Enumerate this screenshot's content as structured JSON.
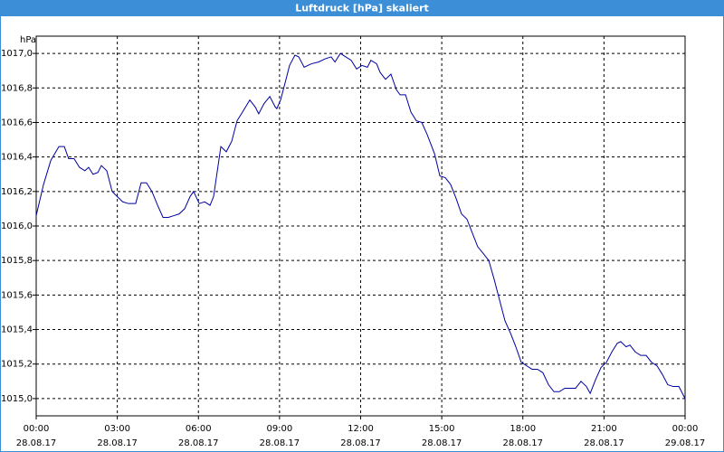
{
  "chart_data": {
    "type": "line",
    "title": "Luftdruck [hPa] skaliert",
    "y_label": "hPa",
    "xlim": [
      0,
      24
    ],
    "ylim": [
      1014.9,
      1017.1
    ],
    "grid": true,
    "xticks": [
      {
        "value": 0,
        "label": "00:00",
        "date": "28.08.17"
      },
      {
        "value": 3,
        "label": "03:00",
        "date": "28.08.17"
      },
      {
        "value": 6,
        "label": "06:00",
        "date": "28.08.17"
      },
      {
        "value": 9,
        "label": "09:00",
        "date": "28.08.17"
      },
      {
        "value": 12,
        "label": "12:00",
        "date": "28.08.17"
      },
      {
        "value": 15,
        "label": "15:00",
        "date": "28.08.17"
      },
      {
        "value": 18,
        "label": "18:00",
        "date": "28.08.17"
      },
      {
        "value": 21,
        "label": "21:00",
        "date": "28.08.17"
      },
      {
        "value": 24,
        "label": "00:00",
        "date": "29.08.17"
      }
    ],
    "yticks": [
      {
        "value": 1015.0,
        "label": "1015,0"
      },
      {
        "value": 1015.2,
        "label": "1015,2"
      },
      {
        "value": 1015.4,
        "label": "1015,4"
      },
      {
        "value": 1015.6,
        "label": "1015,6"
      },
      {
        "value": 1015.8,
        "label": "1015,8"
      },
      {
        "value": 1016.0,
        "label": "1016,0"
      },
      {
        "value": 1016.2,
        "label": "1016,2"
      },
      {
        "value": 1016.4,
        "label": "1016,4"
      },
      {
        "value": 1016.6,
        "label": "1016,6"
      },
      {
        "value": 1016.8,
        "label": "1016,8"
      },
      {
        "value": 1017.0,
        "label": "1017,0"
      }
    ],
    "series": [
      {
        "name": "Luftdruck",
        "color": "#0000a0",
        "x": [
          0,
          0.27,
          0.54,
          0.84,
          1.04,
          1.2,
          1.4,
          1.6,
          1.8,
          1.94,
          2.1,
          2.28,
          2.41,
          2.61,
          2.81,
          3.0,
          3.2,
          3.41,
          3.68,
          3.88,
          4.08,
          4.28,
          4.49,
          4.69,
          4.89,
          5.09,
          5.29,
          5.49,
          5.69,
          5.82,
          6.03,
          6.23,
          6.43,
          6.56,
          6.83,
          7.03,
          7.23,
          7.43,
          7.63,
          7.9,
          8.1,
          8.23,
          8.43,
          8.64,
          8.84,
          8.9,
          9.04,
          9.24,
          9.37,
          9.57,
          9.71,
          9.91,
          10.18,
          10.44,
          10.71,
          10.91,
          11.05,
          11.25,
          11.45,
          11.65,
          11.85,
          12.05,
          12.25,
          12.38,
          12.59,
          12.72,
          12.92,
          13.12,
          13.32,
          13.46,
          13.66,
          13.86,
          14.06,
          14.26,
          14.46,
          14.73,
          14.93,
          15.13,
          15.33,
          15.53,
          15.73,
          15.93,
          16.13,
          16.33,
          16.54,
          16.74,
          16.94,
          17.14,
          17.34,
          17.54,
          17.74,
          17.94,
          18.14,
          18.34,
          18.54,
          18.74,
          18.95,
          19.15,
          19.35,
          19.55,
          19.75,
          19.95,
          20.15,
          20.35,
          20.49,
          20.69,
          20.89,
          21.09,
          21.29,
          21.49,
          21.62,
          21.82,
          21.96,
          22.16,
          22.36,
          22.56,
          22.76,
          22.96,
          23.16,
          23.36,
          23.56,
          23.77,
          24.0
        ],
        "values": [
          1016.06,
          1016.24,
          1016.38,
          1016.46,
          1016.46,
          1016.39,
          1016.39,
          1016.34,
          1016.32,
          1016.34,
          1016.3,
          1016.31,
          1016.35,
          1016.32,
          1016.2,
          1016.17,
          1016.14,
          1016.13,
          1016.13,
          1016.25,
          1016.25,
          1016.2,
          1016.12,
          1016.05,
          1016.05,
          1016.06,
          1016.07,
          1016.1,
          1016.17,
          1016.2,
          1016.13,
          1016.14,
          1016.12,
          1016.17,
          1016.46,
          1016.43,
          1016.49,
          1016.61,
          1016.66,
          1016.73,
          1016.69,
          1016.65,
          1016.71,
          1016.75,
          1016.69,
          1016.68,
          1016.73,
          1016.85,
          1016.93,
          1016.99,
          1016.98,
          1016.92,
          1016.94,
          1016.95,
          1016.97,
          1016.98,
          1016.95,
          1017.0,
          1016.98,
          1016.96,
          1016.91,
          1016.93,
          1016.92,
          1016.96,
          1016.94,
          1016.89,
          1016.85,
          1016.88,
          1016.79,
          1016.76,
          1016.76,
          1016.66,
          1016.61,
          1016.6,
          1016.53,
          1016.42,
          1016.29,
          1016.28,
          1016.24,
          1016.16,
          1016.07,
          1016.04,
          1015.96,
          1015.88,
          1015.84,
          1015.8,
          1015.69,
          1015.57,
          1015.45,
          1015.38,
          1015.3,
          1015.21,
          1015.19,
          1015.17,
          1015.17,
          1015.15,
          1015.08,
          1015.04,
          1015.04,
          1015.06,
          1015.06,
          1015.06,
          1015.1,
          1015.07,
          1015.03,
          1015.11,
          1015.18,
          1015.21,
          1015.27,
          1015.32,
          1015.33,
          1015.3,
          1015.31,
          1015.27,
          1015.25,
          1015.25,
          1015.21,
          1015.19,
          1015.14,
          1015.08,
          1015.07,
          1015.07,
          1015.0
        ]
      }
    ]
  }
}
